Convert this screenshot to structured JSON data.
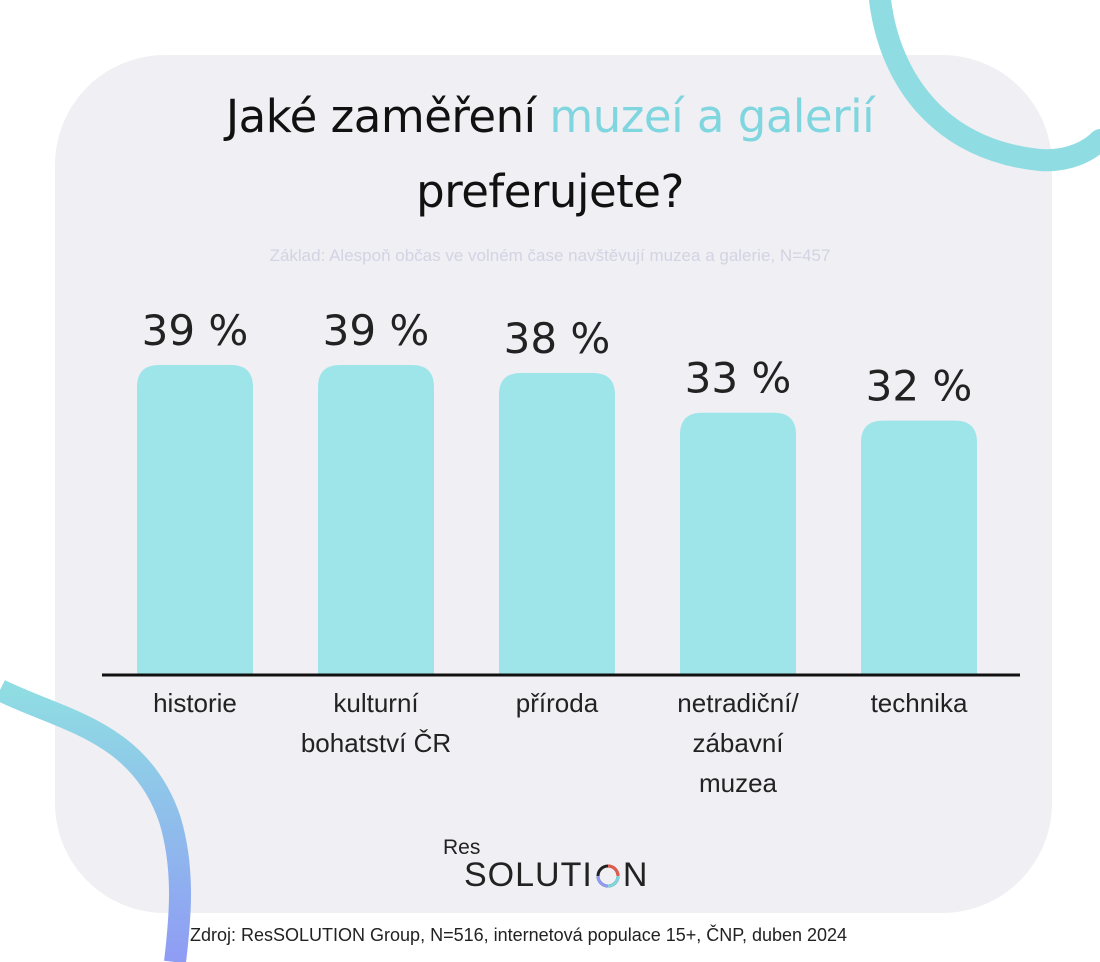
{
  "title": {
    "part1": "Jaké zaměření ",
    "highlight": "muzeí a galerií",
    "line2": "preferujete?"
  },
  "subtitle": "Základ: Alespoň občas ve volném čase navštěvují muzea a galerie, N=457",
  "footer": "Zdroj: ResSOLUTION Group, N=516, internetová populace 15+, ČNP, duben 2024",
  "logo": {
    "top": "Res",
    "left": "SOLUTI",
    "right": "N"
  },
  "colors": {
    "bar": "#9ee5e9",
    "highlight": "#7fd6de",
    "card": "#efeff4",
    "text": "#111111"
  },
  "chart_data": {
    "type": "bar",
    "categories": [
      [
        "historie"
      ],
      [
        "kulturní",
        "bohatství ČR"
      ],
      [
        "příroda"
      ],
      [
        "netradiční/",
        "zábavní",
        "muzea"
      ],
      [
        "technika"
      ]
    ],
    "values": [
      39,
      39,
      38,
      33,
      32
    ],
    "value_labels": [
      "39 %",
      "39 %",
      "38 %",
      "33 %",
      "32 %"
    ],
    "unit": "%",
    "ylim": [
      0,
      39
    ],
    "grid": false,
    "legend": "none"
  }
}
